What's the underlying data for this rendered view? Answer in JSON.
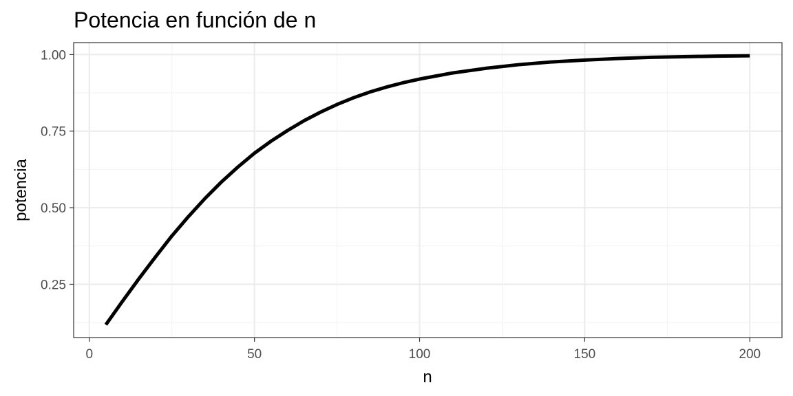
{
  "chart_data": {
    "type": "line",
    "title": "Potencia en función de n",
    "xlabel": "n",
    "ylabel": "potencia",
    "xlim": [
      -4.75,
      209.75
    ],
    "ylim": [
      0.076,
      1.039
    ],
    "x_ticks": [
      0,
      50,
      100,
      150,
      200
    ],
    "x_tick_labels": [
      "0",
      "50",
      "100",
      "150",
      "200"
    ],
    "y_ticks": [
      0.25,
      0.5,
      0.75,
      1.0
    ],
    "y_tick_labels": [
      "0.25",
      "0.50",
      "0.75",
      "1.00"
    ],
    "x_minor": [
      25,
      75,
      125,
      175
    ],
    "y_minor": [
      0.125,
      0.375,
      0.625,
      0.875
    ],
    "grid": true,
    "line_color": "#000000",
    "series": [
      {
        "x": [
          5,
          10,
          15,
          20,
          25,
          30,
          35,
          40,
          45,
          50,
          55,
          60,
          65,
          70,
          75,
          80,
          85,
          90,
          95,
          100,
          110,
          120,
          130,
          140,
          150,
          160,
          170,
          180,
          190,
          200
        ],
        "values": [
          0.118,
          0.194,
          0.268,
          0.339,
          0.408,
          0.471,
          0.53,
          0.584,
          0.633,
          0.678,
          0.717,
          0.752,
          0.784,
          0.812,
          0.837,
          0.859,
          0.878,
          0.894,
          0.908,
          0.92,
          0.94,
          0.955,
          0.967,
          0.976,
          0.982,
          0.987,
          0.991,
          0.993,
          0.995,
          0.996
        ]
      }
    ]
  }
}
